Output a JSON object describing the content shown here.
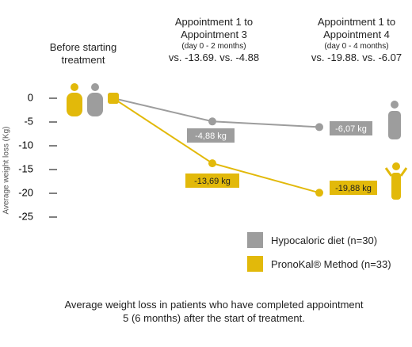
{
  "chart_data": {
    "type": "line",
    "y_label": "Average weight loss (Kg)",
    "categories": [
      "Before starting treatment",
      "Appointment 1 to Appointment 3",
      "Appointment 1 to Appointment 4"
    ],
    "category_notes": [
      null,
      "(day 0 - 2 months)",
      "(day 0 - 4 months)"
    ],
    "category_comparisons": [
      null,
      "vs. -13.69. vs. -4.88",
      "vs. -19.88. vs. -6.07"
    ],
    "series": [
      {
        "name": "Hypocaloric diet (n=30)",
        "color": "#9d9d9d",
        "values": [
          0,
          -4.88,
          -6.07
        ],
        "value_labels": [
          null,
          "-4,88 kg",
          "-6,07 kg"
        ]
      },
      {
        "name": "PronoKal® Method (n=33)",
        "color": "#e2b90a",
        "values": [
          0,
          -13.69,
          -19.88
        ],
        "value_labels": [
          null,
          "-13,69 kg",
          "-19,88 kg"
        ]
      }
    ],
    "ylim": [
      -26,
      2
    ],
    "yticks": [
      0,
      -5,
      -10,
      -15,
      -20,
      -25
    ],
    "caption": "Average weight loss in patients who have completed appointment 5 (6 months) after the start of treatment."
  }
}
